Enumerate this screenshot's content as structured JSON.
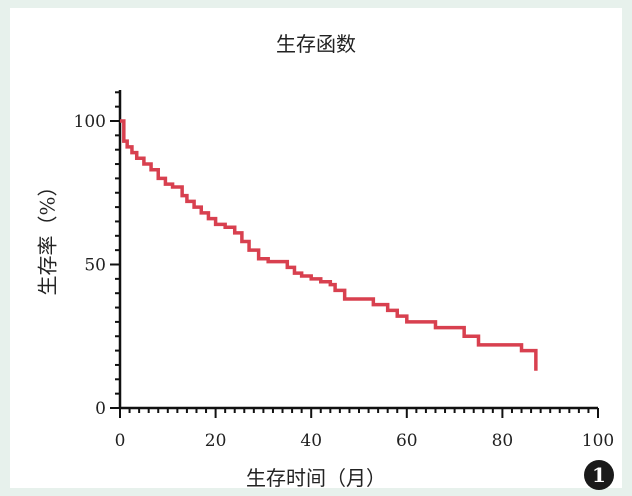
{
  "chart_data": {
    "type": "line",
    "title": "生存函数",
    "xlabel": "生存时间（月）",
    "ylabel": "生存率（%）",
    "xlim": [
      0,
      100
    ],
    "ylim": [
      0,
      100
    ],
    "x_ticks": [
      "0",
      "20",
      "40",
      "60",
      "80",
      "100"
    ],
    "y_ticks": [
      "0",
      "50",
      "100"
    ],
    "grid": false,
    "legend": "none",
    "line_color": "#d8404f",
    "series": [
      {
        "step": true,
        "x": [
          0,
          0.8,
          1.5,
          2.5,
          3.5,
          5,
          6.5,
          8,
          9.5,
          11,
          13,
          14,
          15.5,
          17,
          18.5,
          20,
          22,
          24,
          25.5,
          27,
          29,
          31,
          35,
          36.5,
          38,
          40,
          42,
          44,
          45,
          47,
          53,
          56,
          58,
          60,
          66,
          72,
          75,
          84,
          87
        ],
        "y": [
          100,
          93,
          91,
          89,
          87,
          85,
          83,
          80,
          78,
          77,
          74,
          72,
          70,
          68,
          66,
          64,
          63,
          61,
          58,
          55,
          52,
          51,
          49,
          47,
          46,
          45,
          44,
          43,
          41,
          38,
          36,
          34,
          32,
          30,
          28,
          25,
          22,
          20,
          13
        ]
      }
    ]
  },
  "badge_label": "1"
}
